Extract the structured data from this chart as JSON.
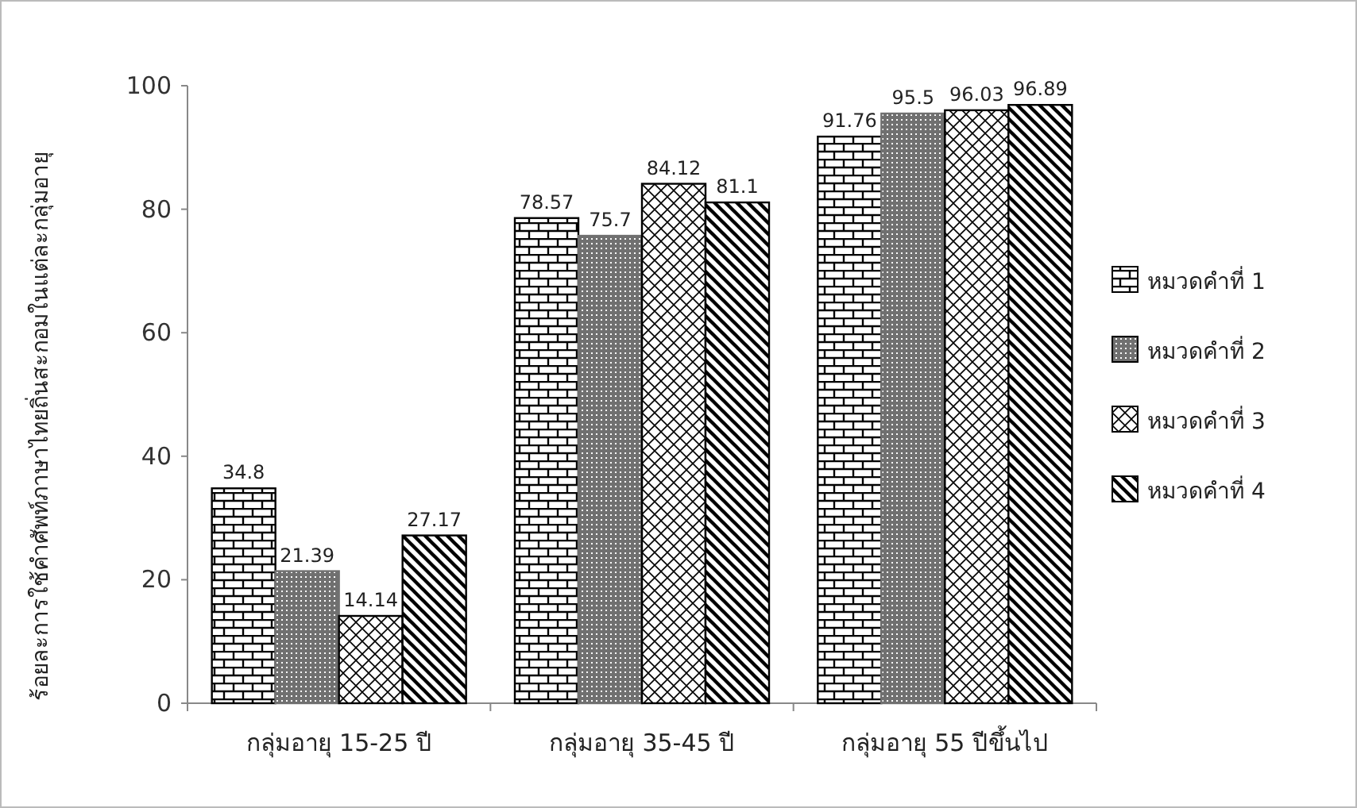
{
  "chart_data": {
    "type": "bar",
    "ylabel": "ร้อยละการใช้คำศัพท์ภาษาไทยถิ่นสะกอมในแต่ละกลุ่มอายุ",
    "categories": [
      "กลุ่มอายุ 15-25 ปี",
      "กลุ่มอายุ 35-45 ปี",
      "กลุ่มอายุ 55 ปีขึ้นไป"
    ],
    "series": [
      {
        "name": "หมวดคำที่ 1",
        "color": "#000000",
        "values": [
          34.8,
          78.57,
          91.76
        ]
      },
      {
        "name": "หมวดคำที่ 2",
        "color": "#707070",
        "values": [
          21.39,
          75.7,
          95.5
        ]
      },
      {
        "name": "หมวดคำที่ 3",
        "color": "#000000",
        "values": [
          14.14,
          84.12,
          96.03
        ]
      },
      {
        "name": "หมวดคำที่ 4",
        "color": "#000000",
        "values": [
          27.17,
          81.1,
          96.89
        ]
      }
    ],
    "ylim": [
      0,
      100
    ],
    "yticks": [
      0,
      20,
      40,
      60,
      80,
      100
    ],
    "data_labels": true,
    "legend": "right",
    "grid": false
  }
}
